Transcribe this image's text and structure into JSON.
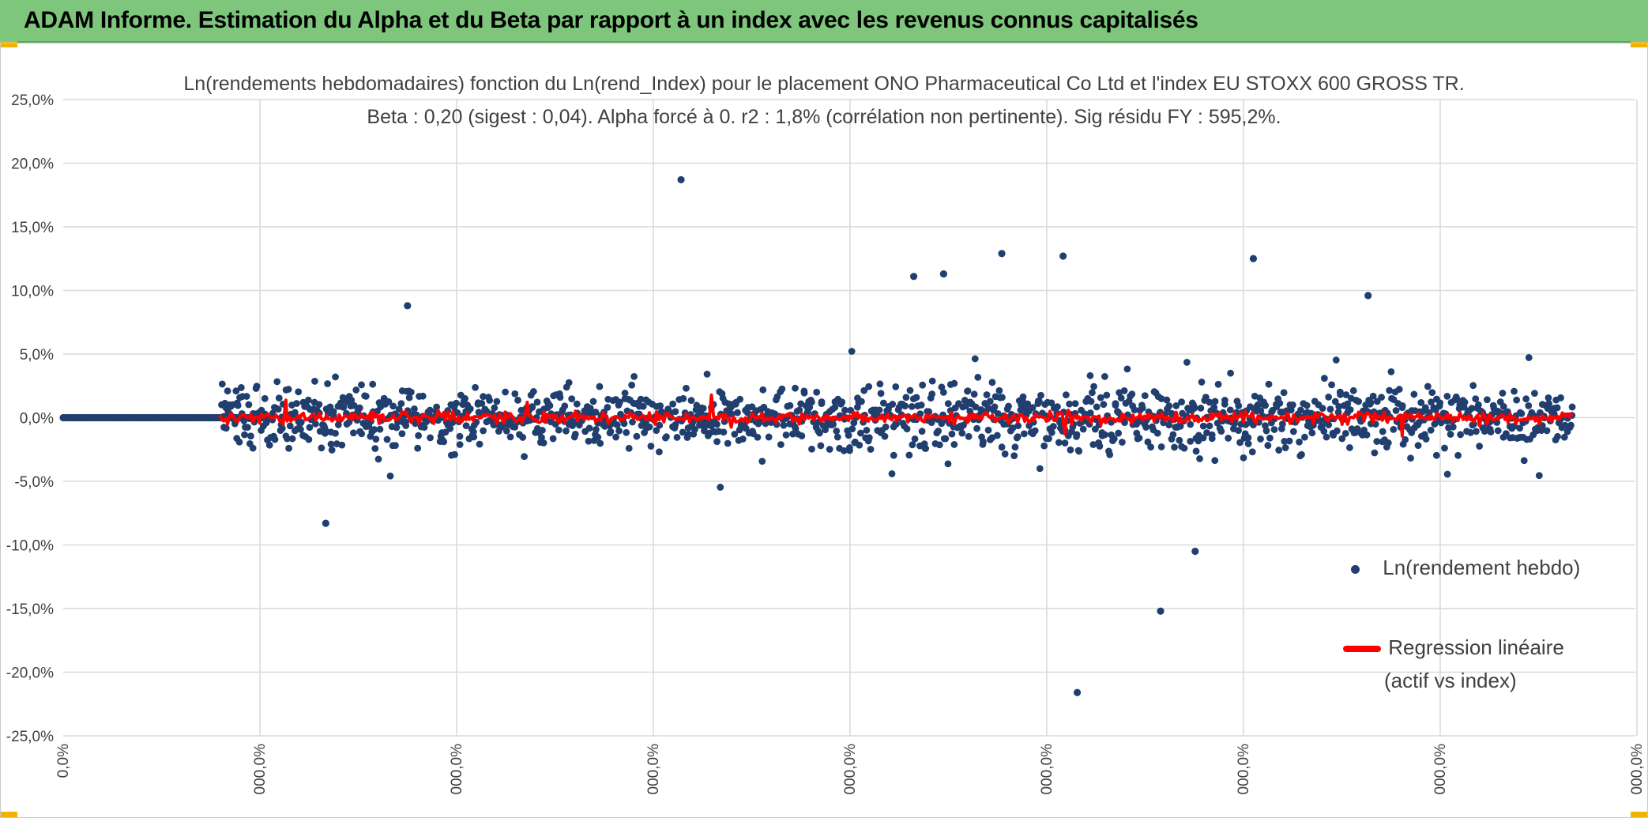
{
  "header": {
    "title": "ADAM Informe. Estimation du Alpha et du Beta par rapport à un index avec les revenus connus capitalisés"
  },
  "colors": {
    "banner": "#7dc67b",
    "points": "#203f6e",
    "regression": "#ff0000",
    "grid": "#d9d9d9",
    "text": "#404040"
  },
  "chart_data": {
    "type": "scatter",
    "title": "Ln(rendements hebdomadaires) fonction du Ln(rend_Index) pour le placement ONO Pharmaceutical Co Ltd et l'index EU STOXX 600 GROSS TR.",
    "subtitle": "Beta : 0,20 (sigest : 0,04). Alpha forcé à 0. r2 : 1,8% (corrélation non pertinente). Sig résidu FY : 595,2%.",
    "ylim": [
      -25,
      25
    ],
    "y_ticks": [
      "25,0%",
      "20,0%",
      "15,0%",
      "10,0%",
      "5,0%",
      "0,0%",
      "-5,0%",
      "-10,0%",
      "-15,0%",
      "-20,0%",
      "-25,0%"
    ],
    "x_ticks": [
      "0,0%",
      "000,0%",
      "000,0%",
      "000,0%",
      "000,0%",
      "000,0%",
      "000,0%",
      "000,0%",
      "000,0%"
    ],
    "grid": true,
    "legend_position": "right",
    "series": [
      {
        "name": "Ln(rendement hebdo)",
        "kind": "points"
      },
      {
        "name": "Regression linéaire (actif vs index)",
        "name_lines": [
          "Regression linéaire",
          "(actif vs index)"
        ],
        "kind": "line",
        "beta": 0.2
      }
    ],
    "notable_points": [
      {
        "x_frac": 0.393,
        "y": 18.7
      },
      {
        "x_frac": 0.645,
        "y": -21.6
      },
      {
        "x_frac": 0.698,
        "y": -15.2
      },
      {
        "x_frac": 0.597,
        "y": 12.9
      },
      {
        "x_frac": 0.636,
        "y": 12.7
      },
      {
        "x_frac": 0.757,
        "y": 12.5
      },
      {
        "x_frac": 0.541,
        "y": 11.1
      },
      {
        "x_frac": 0.56,
        "y": 11.3
      },
      {
        "x_frac": 0.83,
        "y": 9.6
      },
      {
        "x_frac": 0.72,
        "y": -10.5
      },
      {
        "x_frac": 0.167,
        "y": -8.3
      },
      {
        "x_frac": 0.219,
        "y": 8.8
      }
    ]
  }
}
